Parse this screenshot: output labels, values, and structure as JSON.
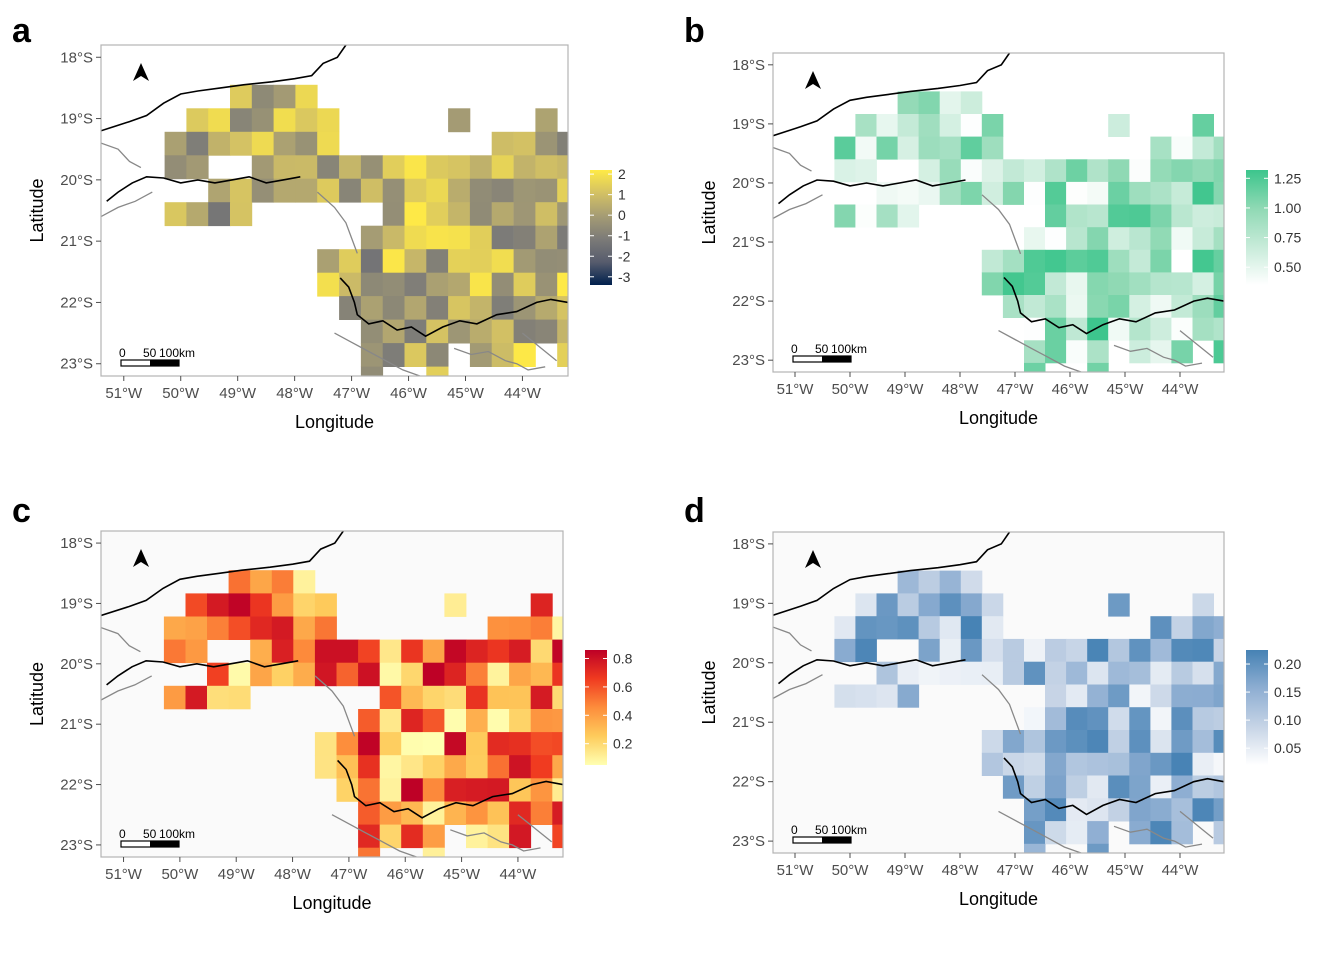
{
  "figure": {
    "axes": {
      "x_label": "Longitude",
      "y_label": "Latitude",
      "x_ticks": [
        "51°W",
        "50°W",
        "49°W",
        "48°W",
        "47°W",
        "46°W",
        "45°W",
        "44°W"
      ],
      "y_ticks": [
        "18°S",
        "19°S",
        "20°S",
        "21°S",
        "22°S",
        "23°S"
      ],
      "x_tick_values": [
        -51,
        -50,
        -49,
        -48,
        -47,
        -46,
        -45,
        -44
      ],
      "y_tick_values": [
        -18,
        -19,
        -20,
        -21,
        -22,
        -23
      ],
      "xlim": [
        -51.4,
        -43.2
      ],
      "ylim": [
        -23.2,
        -17.8
      ]
    },
    "scale_bar": {
      "labels": [
        "0",
        "50",
        "100km"
      ]
    },
    "north_arrow": {
      "icon": "north-arrow-icon"
    },
    "grid": {
      "lon_start": -51.05,
      "lat_start": -18.45,
      "cell_deg": 0.383,
      "mask": [
        ".....xxxx...............",
        "...xxxxxxx.....x...x....",
        "..xxxxxxxx.......xxxxxx.",
        "..xx..xxxxxxxxxxxxxxxxx.",
        "....xxxxxxxxxxxxxxxxxxx.",
        "..xxxx......xxxxxxxxxxx.",
        "...........xxxxxxxxxxx..",
        ".........xxxxxxxxxxxx...",
        ".........xxxxxxxxxxxxx..",
        "..........xxxxxxxxxxxx..",
        "...........xxxxxxxxxx...",
        "...........xxxx.xxx.x...",
        "...........x..x.........",
        "........................"
      ]
    },
    "panels": [
      {
        "letter": "a",
        "legend": {
          "labels": [
            "2",
            "1",
            "0",
            "-1",
            "-2",
            "-3"
          ],
          "values": [
            2,
            1,
            0,
            -1,
            -2,
            -3
          ],
          "min": -3.4,
          "max": 2.2,
          "colors": [
            "#00204d",
            "#575c6d",
            "#7c7b78",
            "#a59c74",
            "#d3c164",
            "#ffea46"
          ]
        }
      },
      {
        "letter": "b",
        "legend": {
          "labels": [
            "1.25",
            "1.00",
            "0.75",
            "0.50"
          ],
          "values": [
            1.25,
            1.0,
            0.75,
            0.5
          ],
          "min": 0.35,
          "max": 1.32,
          "colors": [
            "#ffffff",
            "#c7ebd9",
            "#8fd9b4",
            "#3cc58c"
          ]
        }
      },
      {
        "letter": "c",
        "legend": {
          "labels": [
            "0.8",
            "0.6",
            "0.4",
            "0.2"
          ],
          "values": [
            0.8,
            0.6,
            0.4,
            0.2
          ],
          "min": 0.05,
          "max": 0.86,
          "colors": [
            "#ffffb2",
            "#fecc5c",
            "#fd8d3c",
            "#f03b20",
            "#bd0026"
          ]
        }
      },
      {
        "letter": "d",
        "legend": {
          "labels": [
            "0.20",
            "0.15",
            "0.10",
            "0.05"
          ],
          "values": [
            0.2,
            0.15,
            0.1,
            0.05
          ],
          "min": 0.02,
          "max": 0.225,
          "colors": [
            "#ffffff",
            "#c6d4e6",
            "#8eaed2",
            "#4682b4"
          ]
        }
      }
    ]
  }
}
